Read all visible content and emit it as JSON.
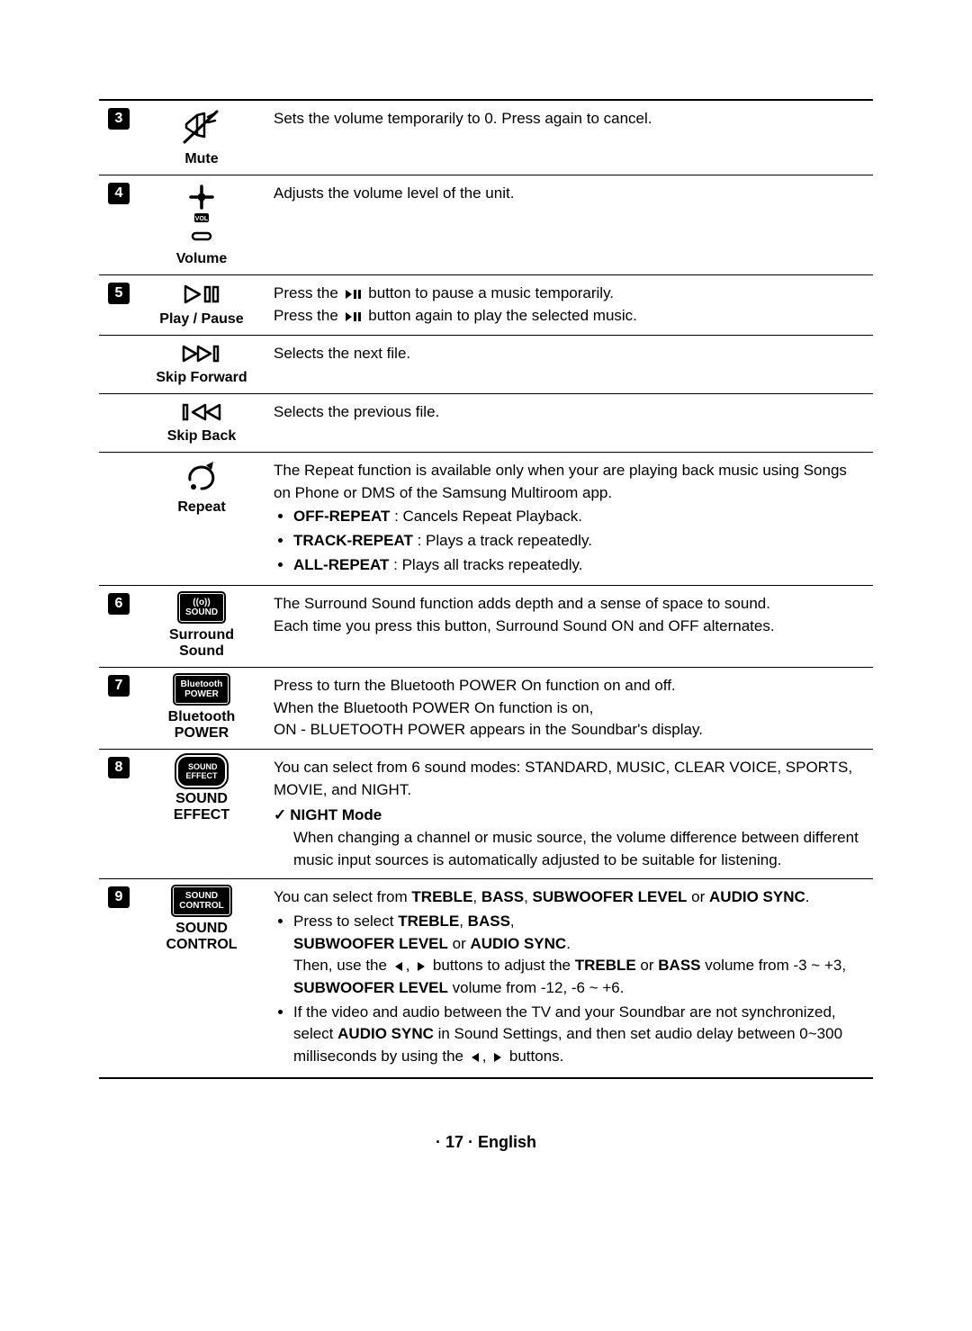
{
  "rows": [
    {
      "num": "3",
      "label": "Mute",
      "icon": "mute",
      "desc_plain": "Sets the volume temporarily to 0. Press again to cancel."
    },
    {
      "num": "4",
      "label": "Volume",
      "icon": "volume",
      "desc_plain": "Adjusts the volume level of the unit."
    },
    {
      "num": "5",
      "label": "Play / Pause",
      "icon": "playpause",
      "lines": [
        {
          "pre": "Press the ",
          "glyph": "playpause",
          "post": " button to pause a music temporarily."
        },
        {
          "pre": "Press the ",
          "glyph": "playpause",
          "post": " button again to play the selected music."
        }
      ]
    },
    {
      "continue": true,
      "label": "Skip Forward",
      "icon": "skipfwd",
      "desc_plain": "Selects the next file."
    },
    {
      "continue": true,
      "label": "Skip Back",
      "icon": "skipback",
      "desc_plain": "Selects the previous file."
    },
    {
      "continue": true,
      "label": "Repeat",
      "icon": "repeat",
      "intro": "The Repeat function is available only when your are playing back music using Songs on Phone or DMS of the Samsung Multiroom app.",
      "bullets": [
        {
          "bold": "OFF-REPEAT",
          "rest": " : Cancels Repeat Playback."
        },
        {
          "bold": "TRACK-REPEAT",
          "rest": " : Plays a track repeatedly."
        },
        {
          "bold": "ALL-REPEAT",
          "rest": " : Plays all tracks repeatedly."
        }
      ]
    },
    {
      "num": "6",
      "label": "Surround Sound",
      "icon": "surround",
      "desc_multi": [
        "The Surround Sound function adds depth and a sense of space to sound.",
        "Each time you press this button, Surround Sound ON and OFF alternates."
      ]
    },
    {
      "num": "7",
      "label": "Bluetooth POWER",
      "icon": "btpower",
      "desc_multi": [
        "Press to turn the Bluetooth POWER On function on and off.",
        "When the Bluetooth POWER On function is on,",
        "ON - BLUETOOTH POWER appears in the Soundbar's display."
      ]
    },
    {
      "num": "8",
      "label": "SOUND EFFECT",
      "icon": "soundeffect",
      "intro": "You can select from 6 sound modes: STANDARD, MUSIC, CLEAR VOICE, SPORTS, MOVIE, and NIGHT.",
      "check_title": "NIGHT Mode",
      "check_body": "When changing a channel or music source, the volume difference between different music input sources is automatically adjusted to be suitable for listening."
    },
    {
      "num": "9",
      "label": "SOUND CONTROL",
      "icon": "soundcontrol",
      "sc_intro_html": "You can select from <b>TREBLE</b>, <b>BASS</b>, <b>SUBWOOFER LEVEL</b> or <b>AUDIO SYNC</b>.",
      "sc_bullets": [
        {
          "html": "Press to select <b>TREBLE</b>, <b>BASS</b>,<br><b>SUBWOOFER LEVEL</b> or <b>AUDIO SYNC</b>.<br>Then, use the @L@, @R@ buttons to adjust the <b>TREBLE</b> or <b>BASS</b> volume from -3 ~ +3, <b>SUBWOOFER LEVEL</b> volume from -12, -6 ~ +6."
        },
        {
          "html": "If the video and audio between the TV and your Soundbar are not synchronized, select <b>AUDIO SYNC</b> in Sound Settings, and then set audio delay between 0~300 milliseconds by using the @L@, @R@ buttons."
        }
      ]
    }
  ],
  "footer": {
    "page": "17",
    "lang": "English"
  }
}
